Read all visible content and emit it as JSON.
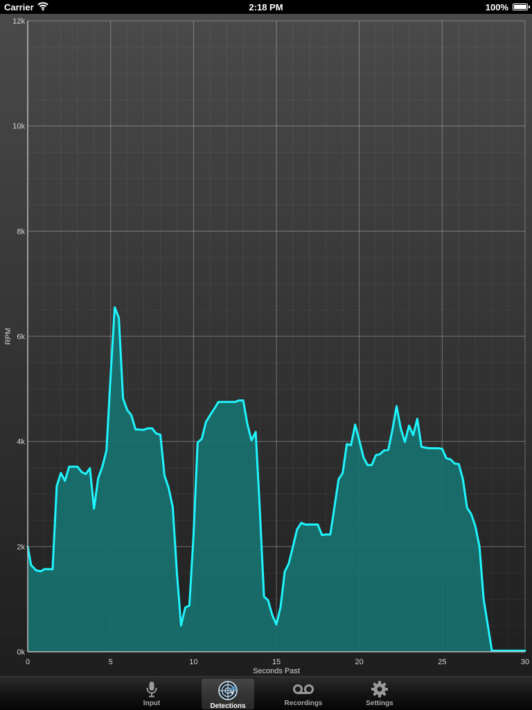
{
  "status_bar": {
    "carrier": "Carrier",
    "time": "2:18 PM",
    "battery": "100%"
  },
  "chart_data": {
    "type": "area",
    "xlabel": "Seconds Past",
    "ylabel": "RPM",
    "xlim": [
      0,
      30
    ],
    "ylim": [
      0,
      12000
    ],
    "x_ticks": [
      0,
      5,
      10,
      15,
      20,
      25,
      30
    ],
    "x_tick_labels": [
      "0",
      "5",
      "10",
      "15",
      "20",
      "25",
      "30"
    ],
    "y_ticks": [
      0,
      2000,
      4000,
      6000,
      8000,
      10000,
      12000
    ],
    "y_tick_labels": [
      "0k",
      "2k",
      "4k",
      "6k",
      "8k",
      "10k",
      "12k"
    ],
    "grid": true,
    "line_color": "#1ff5ff",
    "fill_color": "#17716f",
    "x": [
      0,
      0.2,
      0.5,
      0.8,
      1.0,
      1.5,
      1.75,
      2.0,
      2.25,
      2.5,
      3.0,
      3.25,
      3.5,
      3.75,
      4.0,
      4.25,
      4.5,
      4.75,
      5.0,
      5.25,
      5.5,
      5.75,
      6.0,
      6.25,
      6.5,
      7.0,
      7.25,
      7.5,
      7.75,
      8.0,
      8.25,
      8.5,
      8.75,
      9.0,
      9.25,
      9.5,
      9.75,
      10.0,
      10.25,
      10.5,
      10.75,
      11.0,
      11.25,
      11.5,
      12.5,
      12.75,
      13.0,
      13.25,
      13.5,
      13.75,
      14.0,
      14.25,
      14.5,
      14.75,
      15.0,
      15.25,
      15.5,
      15.75,
      16.0,
      16.25,
      16.5,
      16.75,
      17.5,
      17.75,
      18.0,
      18.25,
      18.5,
      18.75,
      19.0,
      19.25,
      19.5,
      19.75,
      20.0,
      20.25,
      20.5,
      20.75,
      21.0,
      21.25,
      21.5,
      21.75,
      22.0,
      22.25,
      22.5,
      22.75,
      23.0,
      23.25,
      23.5,
      23.75,
      24.0,
      24.25,
      24.75,
      25.0,
      25.25,
      25.5,
      25.75,
      26.0,
      26.25,
      26.5,
      26.75,
      27.0,
      27.25,
      27.5,
      28.0,
      29.0,
      30.0
    ],
    "values": [
      2000,
      1650,
      1550,
      1530,
      1570,
      1570,
      3150,
      3400,
      3250,
      3520,
      3520,
      3420,
      3380,
      3490,
      2720,
      3300,
      3520,
      3830,
      5250,
      6550,
      6350,
      4820,
      4600,
      4500,
      4230,
      4220,
      4250,
      4250,
      4150,
      4130,
      3350,
      3120,
      2750,
      1500,
      500,
      840,
      880,
      2200,
      3980,
      4050,
      4370,
      4500,
      4620,
      4750,
      4750,
      4780,
      4780,
      4330,
      4020,
      4180,
      2700,
      1050,
      980,
      700,
      520,
      850,
      1520,
      1680,
      2000,
      2330,
      2450,
      2420,
      2420,
      2220,
      2230,
      2230,
      2750,
      3280,
      3400,
      3950,
      3930,
      4320,
      4020,
      3700,
      3550,
      3550,
      3740,
      3760,
      3830,
      3840,
      4220,
      4670,
      4250,
      3990,
      4300,
      4120,
      4430,
      3900,
      3880,
      3870,
      3870,
      3860,
      3680,
      3660,
      3580,
      3570,
      3280,
      2740,
      2620,
      2390,
      2000,
      1000,
      20,
      20,
      20
    ]
  },
  "tab_bar": {
    "items": [
      {
        "label": "Input",
        "icon": "microphone-icon",
        "selected": false
      },
      {
        "label": "Detections",
        "icon": "radar-icon",
        "selected": true
      },
      {
        "label": "Recordings",
        "icon": "voicemail-icon",
        "selected": false
      },
      {
        "label": "Settings",
        "icon": "gear-icon",
        "selected": false
      }
    ]
  }
}
